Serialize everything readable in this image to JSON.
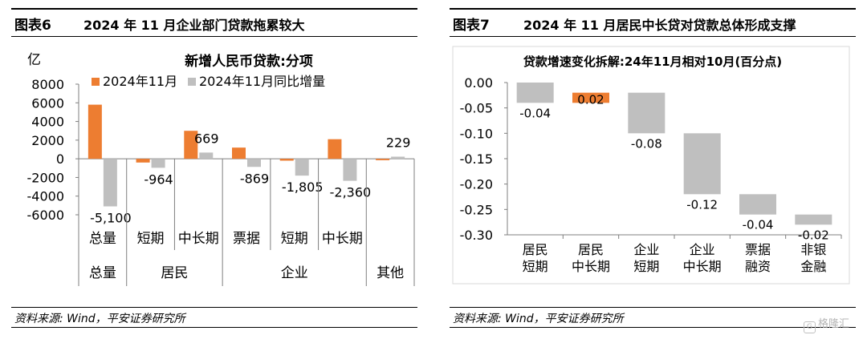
{
  "left": {
    "fig_no": "图表6",
    "fig_title": "2024 年 11 月企业部门贷款拖累较大",
    "source": "资料来源: Wind，平安证券研究所",
    "chart_data": {
      "type": "bar",
      "title": "新增人民币贷款:分项",
      "unit": "亿",
      "ylim": [
        -6000,
        8000
      ],
      "yticks": [
        8000,
        6000,
        4000,
        2000,
        0,
        -2000,
        -4000,
        -6000
      ],
      "categories": [
        "总量",
        "短期",
        "中长期",
        "票据",
        "短期",
        "中长期",
        ""
      ],
      "groups": [
        {
          "label": "总量",
          "from": 0,
          "to": 0
        },
        {
          "label": "居民",
          "from": 1,
          "to": 2
        },
        {
          "label": "企业",
          "from": 3,
          "to": 5
        },
        {
          "label": "其他",
          "from": 6,
          "to": 6
        }
      ],
      "series": [
        {
          "name": "2024年11月",
          "color": "#ED7D31",
          "values": [
            5800,
            -400,
            3000,
            1200,
            -200,
            2100,
            -150
          ]
        },
        {
          "name": "2024年11月同比增量",
          "color": "#BFBFBF",
          "values": [
            -5100,
            -964,
            669,
            -869,
            -1805,
            -2360,
            229
          ]
        }
      ],
      "data_labels": [
        "-5,100",
        "-964",
        "669",
        "-869",
        "-1,805",
        "-2,360",
        "229"
      ]
    }
  },
  "right": {
    "fig_no": "图表7",
    "fig_title": "2024 年 11 月居民中长贷对贷款总体形成支撑",
    "source": "资料来源: Wind，平安证券研究所",
    "watermark": "格隆汇",
    "chart_data": {
      "type": "bar",
      "subtype": "waterfall",
      "title": "贷款增速变化拆解:24年11月相对10月(百分点)",
      "ylim": [
        -0.3,
        0.0
      ],
      "yticks": [
        "0.00",
        "-0.05",
        "-0.10",
        "-0.15",
        "-0.20",
        "-0.25",
        "-0.30"
      ],
      "categories": [
        [
          "居民",
          "短期"
        ],
        [
          "居民",
          "中长期"
        ],
        [
          "企业",
          "短期"
        ],
        [
          "企业",
          "中长期"
        ],
        [
          "票据",
          "融资"
        ],
        [
          "非银",
          "金融"
        ]
      ],
      "values": [
        -0.04,
        0.02,
        -0.08,
        -0.12,
        -0.04,
        -0.02
      ],
      "labels": [
        "-0.04",
        "0.02",
        "-0.08",
        "-0.12",
        "-0.04",
        "-0.02"
      ],
      "colors": {
        "negative": "#BFBFBF",
        "positive": "#ED7D31"
      }
    }
  }
}
